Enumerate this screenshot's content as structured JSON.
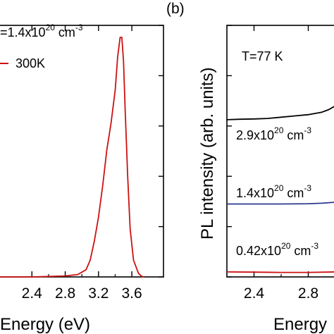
{
  "chart_data": [
    {
      "panel": "a",
      "type": "line",
      "xlabel": "Energy (eV)",
      "ylabel": "",
      "xlim": [
        2.0,
        3.98
      ],
      "ylim": [
        0,
        1.05
      ],
      "x_ticks": [
        "2.4",
        "2.8",
        "3.2",
        "3.6"
      ],
      "x_tick_values": [
        2.4,
        2.8,
        3.2,
        3.6
      ],
      "annotation": {
        "prefix": "=1.4x10",
        "sup": "20",
        "suffix": " cm",
        "sup2": "-3"
      },
      "legend": {
        "label": "300K",
        "placement": "top-left"
      },
      "series": [
        {
          "name": "300K",
          "color": "#cc1111",
          "x": [
            2.0,
            2.4,
            2.8,
            2.95,
            3.05,
            3.1,
            3.15,
            3.2,
            3.25,
            3.3,
            3.35,
            3.4,
            3.43,
            3.46,
            3.48,
            3.5,
            3.52,
            3.55,
            3.58,
            3.62,
            3.68,
            3.72,
            3.75
          ],
          "y": [
            0.0,
            0.0,
            0.004,
            0.01,
            0.03,
            0.07,
            0.15,
            0.25,
            0.38,
            0.53,
            0.64,
            0.78,
            0.92,
            1.0,
            1.0,
            0.9,
            0.7,
            0.42,
            0.2,
            0.07,
            0.015,
            0.002,
            0.0
          ]
        }
      ]
    },
    {
      "panel": "b",
      "type": "line",
      "panel_label": "(b)",
      "xlabel": "Energy",
      "ylabel": "PL intensity (arb. units)",
      "xlim": [
        2.2,
        3.0
      ],
      "ylim": [
        0,
        1.0
      ],
      "x_ticks": [
        "2.4",
        "2.8"
      ],
      "x_tick_values": [
        2.4,
        2.8
      ],
      "annotation": "T=77 K",
      "series": [
        {
          "name": "2.9x10^20 cm^-3",
          "label": {
            "prefix": "2.9x10",
            "sup": "20",
            "suffix": " cm",
            "sup2": "-3"
          },
          "color": "#000000",
          "x": [
            2.2,
            2.3,
            2.4,
            2.5,
            2.6,
            2.7,
            2.8,
            2.9,
            2.95,
            3.0
          ],
          "y": [
            0.625,
            0.627,
            0.628,
            0.63,
            0.635,
            0.64,
            0.645,
            0.655,
            0.665,
            0.68
          ]
        },
        {
          "name": "1.4x10^20 cm^-3",
          "label": {
            "prefix": "1.4x10",
            "sup": "20",
            "suffix": " cm",
            "sup2": "-3"
          },
          "color": "#2a3a8f",
          "x": [
            2.2,
            2.4,
            2.6,
            2.8,
            2.9,
            3.0
          ],
          "y": [
            0.29,
            0.29,
            0.29,
            0.291,
            0.293,
            0.297
          ]
        },
        {
          "name": "0.42x10^20 cm^-3",
          "label": {
            "prefix": "0.42x10",
            "sup": "20",
            "suffix": " cm",
            "sup2": "-3"
          },
          "color": "#cc1111",
          "x": [
            2.2,
            2.4,
            2.6,
            2.8,
            3.0
          ],
          "y": [
            0.02,
            0.019,
            0.018,
            0.018,
            0.02
          ]
        }
      ]
    }
  ]
}
